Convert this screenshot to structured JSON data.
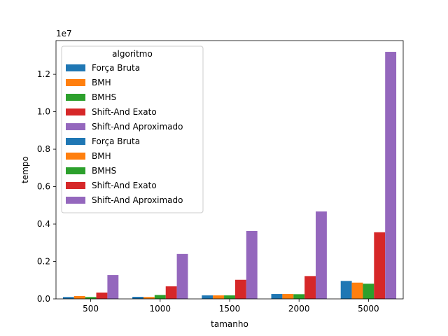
{
  "chart_data": {
    "type": "bar",
    "title": "",
    "xlabel": "tamanho",
    "ylabel": "tempo",
    "y_offset_text": "1e7",
    "categories": [
      "500",
      "1000",
      "1500",
      "2000",
      "5000"
    ],
    "ylim": [
      0,
      13800000
    ],
    "yticks": [
      0,
      2000000,
      4000000,
      6000000,
      8000000,
      10000000,
      12000000
    ],
    "ytick_labels": [
      "0.0",
      "0.2",
      "0.4",
      "0.6",
      "0.8",
      "1.0",
      "1.2"
    ],
    "grid": false,
    "legend": {
      "title": "algoritmo",
      "placement": "upper-left",
      "entries": [
        {
          "label": "Força Bruta",
          "color": "#1f77b4"
        },
        {
          "label": "BMH",
          "color": "#ff7f0e"
        },
        {
          "label": "BMHS",
          "color": "#2ca02c"
        },
        {
          "label": "Shift-And Exato",
          "color": "#d62728"
        },
        {
          "label": "Shift-And Aproximado",
          "color": "#9467bd"
        },
        {
          "label": "Força Bruta",
          "color": "#1f77b4"
        },
        {
          "label": "BMH",
          "color": "#ff7f0e"
        },
        {
          "label": "BMHS",
          "color": "#2ca02c"
        },
        {
          "label": "Shift-And Exato",
          "color": "#d62728"
        },
        {
          "label": "Shift-And Aproximado",
          "color": "#9467bd"
        }
      ]
    },
    "series": [
      {
        "name": "Força Bruta",
        "color": "#1f77b4",
        "values": [
          100000,
          110000,
          190000,
          260000,
          960000
        ]
      },
      {
        "name": "BMH",
        "color": "#ff7f0e",
        "values": [
          150000,
          100000,
          190000,
          260000,
          870000
        ]
      },
      {
        "name": "BMHS",
        "color": "#2ca02c",
        "values": [
          100000,
          210000,
          190000,
          250000,
          810000
        ]
      },
      {
        "name": "Shift-And Exato",
        "color": "#d62728",
        "values": [
          340000,
          670000,
          1020000,
          1220000,
          3560000
        ]
      },
      {
        "name": "Shift-And Aproximado",
        "color": "#9467bd",
        "values": [
          1270000,
          2400000,
          3630000,
          4670000,
          13200000
        ]
      }
    ]
  }
}
